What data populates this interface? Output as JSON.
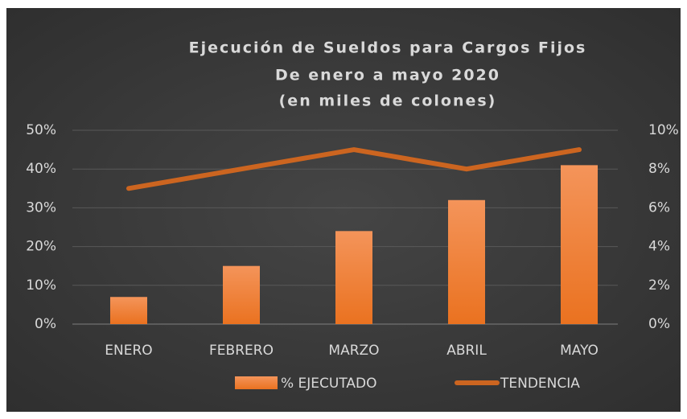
{
  "chart_data": {
    "type": "bar",
    "title_lines": [
      "Ejecución de Sueldos para Cargos Fijos",
      "De enero a mayo 2020",
      "(en miles de colones)"
    ],
    "categories": [
      "ENERO",
      "FEBRERO",
      "MARZO",
      "ABRIL",
      "MAYO"
    ],
    "series": [
      {
        "name": "% EJECUTADO",
        "type": "bar",
        "color": "#ef7b2f",
        "values": [
          7,
          15,
          24,
          32,
          41
        ]
      },
      {
        "name": "TENDENCIA",
        "type": "line",
        "axis": "y2",
        "color": "#cc6520",
        "values": [
          7,
          8,
          9,
          8,
          9
        ]
      }
    ],
    "ylim": [
      0,
      50
    ],
    "yticks": [
      {
        "value": 0,
        "label": "0%"
      },
      {
        "value": 10,
        "label": "10%"
      },
      {
        "value": 20,
        "label": "20%"
      },
      {
        "value": 30,
        "label": "30%"
      },
      {
        "value": 40,
        "label": "40%"
      },
      {
        "value": 50,
        "label": "50%"
      }
    ],
    "y2lim": [
      0,
      10
    ],
    "y2ticks": [
      {
        "value": 0,
        "label": "0%"
      },
      {
        "value": 2,
        "label": "2%"
      },
      {
        "value": 4,
        "label": "4%"
      },
      {
        "value": 6,
        "label": "6%"
      },
      {
        "value": 8,
        "label": "8%"
      },
      {
        "value": 10,
        "label": "10%"
      }
    ],
    "grid": true,
    "legend": "bottom"
  }
}
